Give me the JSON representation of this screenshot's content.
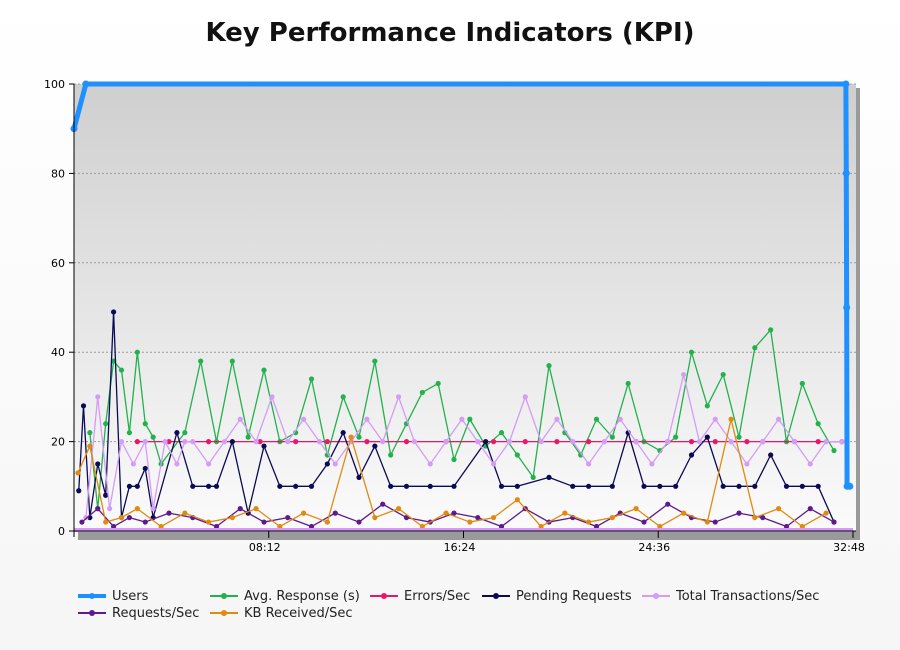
{
  "chart_data": {
    "type": "line",
    "title": "Key Performance Indicators (KPI)",
    "xlabel": "",
    "ylabel": "",
    "ylim": [
      0,
      100
    ],
    "y_ticks": [
      "0",
      "20",
      "40",
      "60",
      "80",
      "100"
    ],
    "x_ticks": [
      "08:12",
      "16:24",
      "24:36",
      "32:48"
    ],
    "x_range_seconds": [
      0,
      1968
    ],
    "grid": "horizontal-dashed",
    "legend_position": "bottom",
    "legend_layout": [
      [
        "Users",
        "Avg. Response (s)",
        "Errors/Sec",
        "Pending Requests",
        "Total Transactions/Sec"
      ],
      [
        "Requests/Sec",
        "KB Received/Sec"
      ]
    ],
    "series": [
      {
        "name": "Users",
        "color": "#1e90ff",
        "x_seconds": [
          0,
          30,
          1950,
          1951,
          1952,
          1953,
          1960
        ],
        "values": [
          90,
          100,
          100,
          80,
          50,
          10,
          10
        ]
      },
      {
        "name": "Avg. Response (s)",
        "color": "#22b24c",
        "x_seconds": [
          40,
          60,
          80,
          100,
          120,
          140,
          160,
          180,
          200,
          220,
          280,
          320,
          360,
          400,
          440,
          480,
          520,
          560,
          600,
          640,
          680,
          720,
          760,
          800,
          840,
          880,
          920,
          960,
          1000,
          1040,
          1080,
          1120,
          1160,
          1200,
          1240,
          1280,
          1320,
          1360,
          1400,
          1440,
          1480,
          1520,
          1560,
          1600,
          1640,
          1680,
          1720,
          1760,
          1800,
          1840,
          1880,
          1920
        ],
        "values": [
          22,
          5,
          24,
          38,
          36,
          22,
          40,
          24,
          21,
          15,
          22,
          38,
          20,
          38,
          21,
          36,
          20,
          22,
          34,
          17,
          30,
          21,
          38,
          17,
          24,
          31,
          33,
          16,
          25,
          19,
          22,
          17,
          12,
          37,
          22,
          17,
          25,
          21,
          33,
          20,
          18,
          21,
          40,
          28,
          35,
          21,
          41,
          45,
          20,
          33,
          24,
          18
        ]
      },
      {
        "name": "Errors/Sec",
        "color": "#e8176a",
        "x_seconds": [
          160,
          240,
          340,
          470,
          560,
          640,
          740,
          840,
          940,
          1060,
          1140,
          1220,
          1300,
          1420,
          1500,
          1560,
          1620,
          1700,
          1740,
          1820,
          1880,
          1940
        ],
        "values": [
          20,
          20,
          20,
          20,
          20,
          20,
          20,
          20,
          20,
          20,
          20,
          20,
          20,
          20,
          20,
          20,
          20,
          20,
          20,
          20,
          20,
          20
        ]
      },
      {
        "name": "Pending Requests",
        "color": "#0a0a55",
        "x_seconds": [
          12,
          24,
          40,
          60,
          80,
          100,
          120,
          140,
          160,
          180,
          200,
          260,
          300,
          340,
          360,
          400,
          440,
          480,
          520,
          560,
          600,
          640,
          680,
          720,
          760,
          800,
          840,
          900,
          960,
          1040,
          1080,
          1120,
          1200,
          1260,
          1300,
          1360,
          1400,
          1440,
          1480,
          1520,
          1560,
          1600,
          1640,
          1680,
          1720,
          1760,
          1800,
          1840,
          1880,
          1920
        ],
        "values": [
          9,
          28,
          3,
          15,
          8,
          49,
          3,
          10,
          10,
          14,
          3,
          22,
          10,
          10,
          10,
          20,
          4,
          19,
          10,
          10,
          10,
          15,
          22,
          12,
          19,
          10,
          10,
          10,
          10,
          20,
          10,
          10,
          12,
          10,
          10,
          10,
          22,
          10,
          10,
          10,
          17,
          21,
          10,
          10,
          10,
          17,
          10,
          10,
          10,
          2
        ]
      },
      {
        "name": "Total Transactions/Sec",
        "color": "#d59cf7",
        "x_seconds": [
          30,
          60,
          90,
          120,
          150,
          180,
          200,
          230,
          260,
          280,
          300,
          340,
          380,
          420,
          460,
          500,
          540,
          580,
          620,
          660,
          700,
          740,
          780,
          820,
          860,
          900,
          940,
          980,
          1020,
          1060,
          1100,
          1140,
          1180,
          1220,
          1260,
          1300,
          1340,
          1380,
          1420,
          1460,
          1500,
          1540,
          1580,
          1620,
          1660,
          1700,
          1740,
          1780,
          1820,
          1860,
          1900,
          1940
        ],
        "values": [
          3,
          30,
          5,
          20,
          15,
          20,
          5,
          20,
          15,
          20,
          20,
          15,
          20,
          25,
          20,
          30,
          20,
          25,
          20,
          15,
          20,
          25,
          20,
          30,
          20,
          15,
          20,
          25,
          20,
          15,
          20,
          30,
          20,
          25,
          20,
          15,
          20,
          25,
          20,
          15,
          20,
          35,
          20,
          25,
          20,
          15,
          20,
          25,
          20,
          15,
          20,
          20
        ]
      },
      {
        "name": "Requests/Sec",
        "color": "#5e1a8c",
        "x_seconds": [
          20,
          60,
          100,
          140,
          180,
          240,
          300,
          360,
          420,
          480,
          540,
          600,
          660,
          720,
          780,
          840,
          900,
          960,
          1020,
          1080,
          1140,
          1200,
          1260,
          1320,
          1380,
          1440,
          1500,
          1560,
          1620,
          1680,
          1740,
          1800,
          1860,
          1920
        ],
        "values": [
          2,
          5,
          1,
          3,
          2,
          4,
          3,
          1,
          5,
          2,
          3,
          1,
          4,
          2,
          6,
          3,
          2,
          4,
          3,
          1,
          5,
          2,
          3,
          1,
          4,
          2,
          6,
          3,
          2,
          4,
          3,
          1,
          5,
          2
        ]
      },
      {
        "name": "KB Received/Sec",
        "color": "#e08a10",
        "x_seconds": [
          10,
          40,
          80,
          120,
          160,
          220,
          280,
          340,
          400,
          460,
          520,
          580,
          640,
          700,
          760,
          820,
          880,
          940,
          1000,
          1060,
          1120,
          1180,
          1240,
          1300,
          1360,
          1420,
          1480,
          1540,
          1600,
          1660,
          1720,
          1780,
          1840,
          1900
        ],
        "values": [
          13,
          19,
          2,
          3,
          5,
          1,
          4,
          2,
          3,
          5,
          1,
          4,
          2,
          21,
          3,
          5,
          1,
          4,
          2,
          3,
          7,
          1,
          4,
          2,
          3,
          5,
          1,
          4,
          2,
          25,
          3,
          5,
          1,
          4
        ]
      }
    ]
  }
}
